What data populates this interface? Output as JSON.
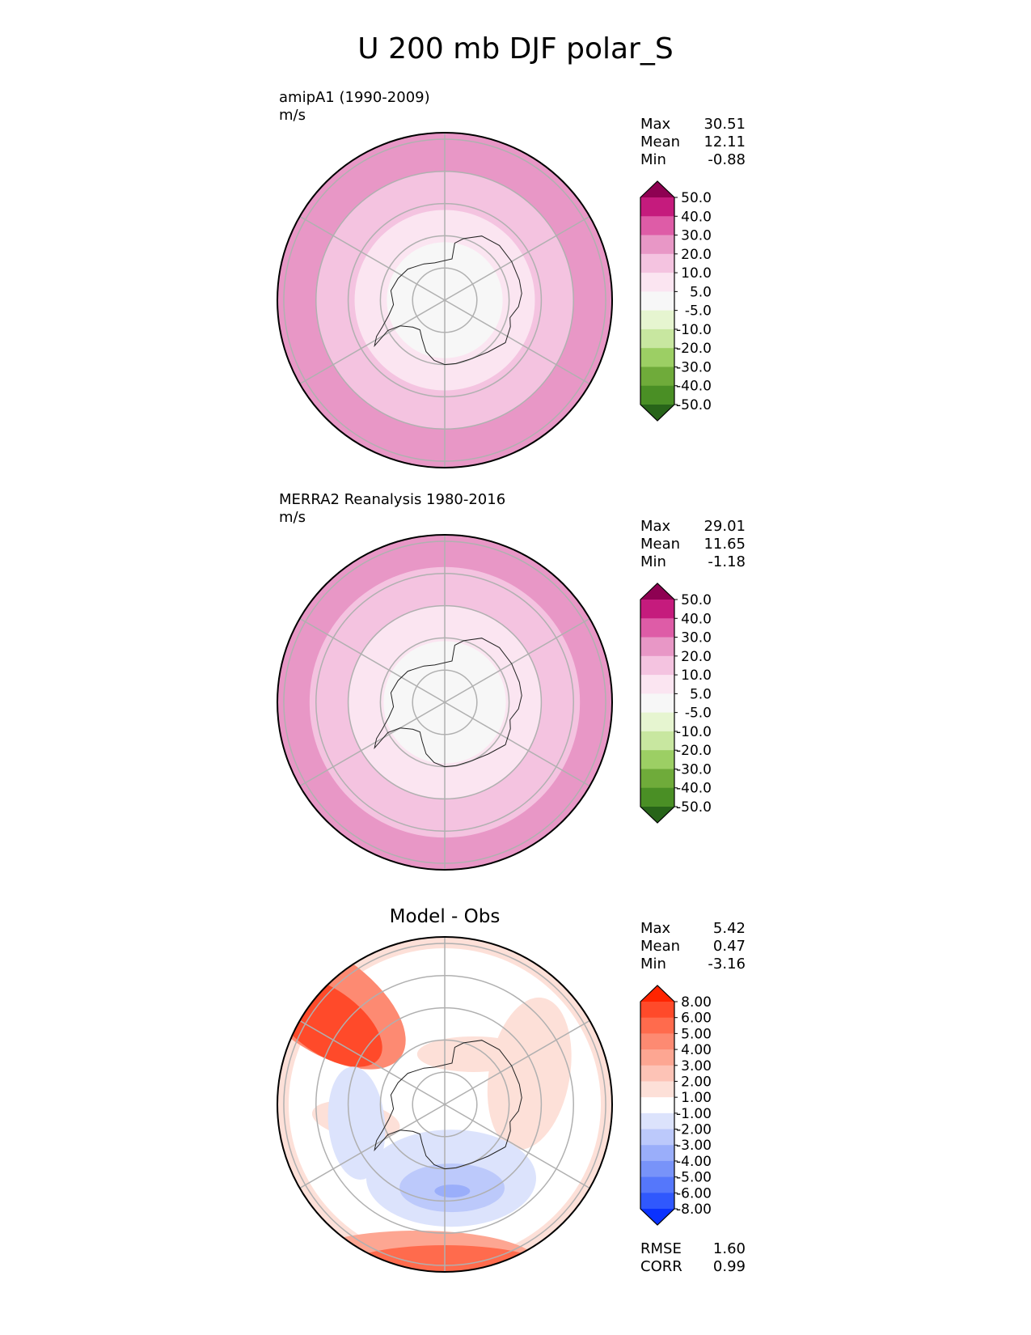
{
  "title": "U 200 mb DJF polar_S",
  "panels": [
    {
      "id": "model",
      "title_line1": "amipA1 (1990-2009)",
      "title_line2": "m/s",
      "stats": [
        {
          "label": "Max",
          "value": "30.51"
        },
        {
          "label": "Mean",
          "value": "12.11"
        },
        {
          "label": "Min",
          "value": "-0.88"
        }
      ]
    },
    {
      "id": "obs",
      "title_line1": "MERRA2 Reanalysis 1980-2016",
      "title_line2": "m/s",
      "stats": [
        {
          "label": "Max",
          "value": "29.01"
        },
        {
          "label": "Mean",
          "value": "11.65"
        },
        {
          "label": "Min",
          "value": "-1.18"
        }
      ]
    },
    {
      "id": "diff",
      "center_title": "Model - Obs",
      "stats": [
        {
          "label": "Max",
          "value": "5.42"
        },
        {
          "label": "Mean",
          "value": "0.47"
        },
        {
          "label": "Min",
          "value": "-3.16"
        }
      ],
      "metrics": [
        {
          "label": "RMSE",
          "value": "1.60"
        },
        {
          "label": "CORR",
          "value": "0.99"
        }
      ]
    }
  ],
  "chart_data": [
    {
      "type": "heatmap",
      "projection": "south-polar",
      "title": "amipA1 (1990-2009)",
      "units": "m/s",
      "field_max": 30.51,
      "field_mean": 12.11,
      "field_min": -0.88,
      "bands": [
        {
          "lat_min": -90,
          "lat_max": -72,
          "value": 2.5
        },
        {
          "lat_min": -72,
          "lat_max": -62,
          "value": 7.5
        },
        {
          "lat_min": -62,
          "lat_max": -50,
          "value": 15
        },
        {
          "lat_min": -50,
          "lat_max": -38,
          "value": 25
        }
      ],
      "colorbar": {
        "levels": [
          "50.0",
          "40.0",
          "30.0",
          "20.0",
          "10.0",
          "5.0",
          "-5.0",
          "-10.0",
          "-20.0",
          "-30.0",
          "-40.0",
          "-50.0"
        ],
        "colors": [
          "#8e0152",
          "#c51b7d",
          "#de5ca7",
          "#e897c6",
          "#f4c3e0",
          "#fbe5f1",
          "#f7f7f7",
          "#e6f5d0",
          "#c8e7a0",
          "#9ccf64",
          "#6fab3a",
          "#4a8f25",
          "#276419"
        ],
        "extend": "both"
      }
    },
    {
      "type": "heatmap",
      "projection": "south-polar",
      "title": "MERRA2 Reanalysis 1980-2016",
      "units": "m/s",
      "field_max": 29.01,
      "field_mean": 11.65,
      "field_min": -1.18,
      "bands": [
        {
          "lat_min": -90,
          "lat_max": -71,
          "value": 2.5
        },
        {
          "lat_min": -71,
          "lat_max": -60,
          "value": 7.5
        },
        {
          "lat_min": -60,
          "lat_max": -48,
          "value": 15
        },
        {
          "lat_min": -48,
          "lat_max": -38,
          "value": 25
        }
      ],
      "colorbar": {
        "levels": [
          "50.0",
          "40.0",
          "30.0",
          "20.0",
          "10.0",
          "5.0",
          "-5.0",
          "-10.0",
          "-20.0",
          "-30.0",
          "-40.0",
          "-50.0"
        ],
        "colors": [
          "#8e0152",
          "#c51b7d",
          "#de5ca7",
          "#e897c6",
          "#f4c3e0",
          "#fbe5f1",
          "#f7f7f7",
          "#e6f5d0",
          "#c8e7a0",
          "#9ccf64",
          "#6fab3a",
          "#4a8f25",
          "#276419"
        ],
        "extend": "both"
      }
    },
    {
      "type": "heatmap",
      "projection": "south-polar",
      "title": "Model - Obs",
      "field_max": 5.42,
      "field_mean": 0.47,
      "field_min": -3.16,
      "rmse": 1.6,
      "corr": 0.99,
      "colorbar": {
        "levels": [
          "8.00",
          "6.00",
          "5.00",
          "4.00",
          "3.00",
          "2.00",
          "1.00",
          "-1.00",
          "-2.00",
          "-3.00",
          "-4.00",
          "-5.00",
          "-6.00",
          "-8.00"
        ],
        "colors": [
          "#ff2400",
          "#ff4a2a",
          "#ff6b4d",
          "#fd8a72",
          "#fda692",
          "#fdc3b6",
          "#fde0d8",
          "#ffffff",
          "#dce3fc",
          "#bcc9fb",
          "#9aaefa",
          "#7893f9",
          "#5577fb",
          "#3058fd",
          "#0a32ff"
        ],
        "extend": "both"
      }
    }
  ]
}
